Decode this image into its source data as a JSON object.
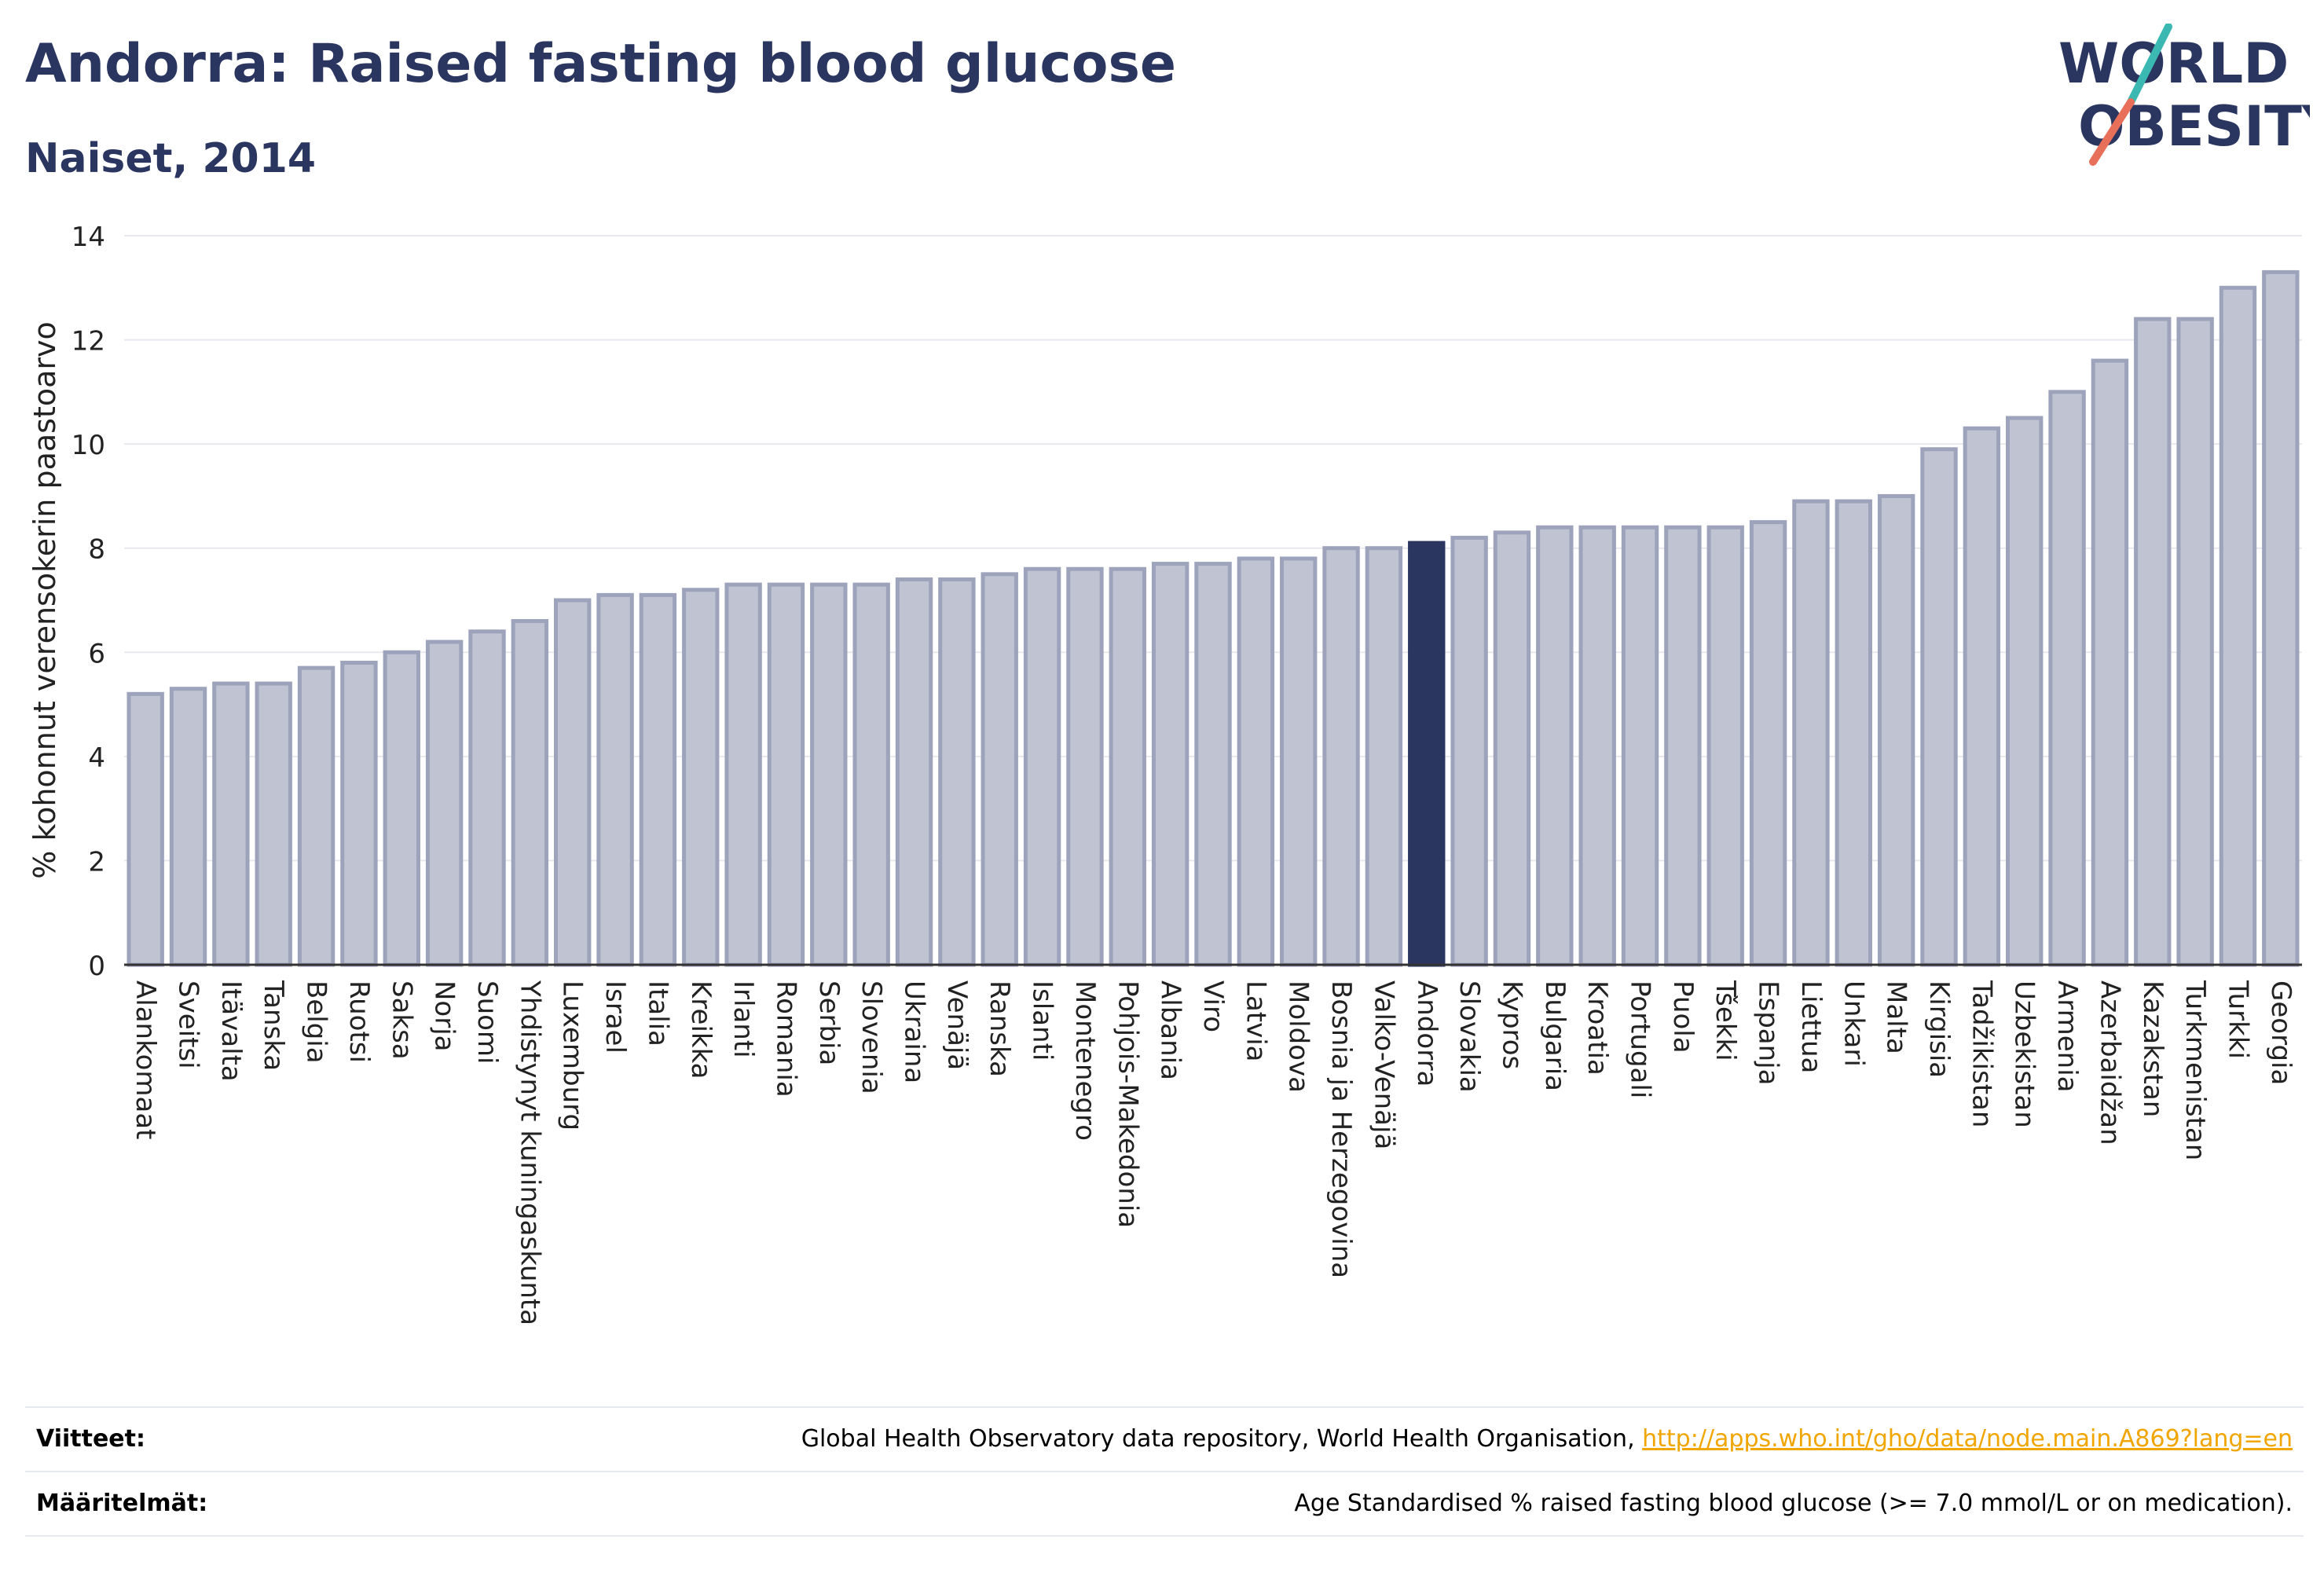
{
  "header": {
    "title": "Andorra: Raised fasting blood glucose",
    "subtitle": "Naiset, 2014"
  },
  "logo": {
    "line1": "WORLD",
    "line2": "OBESITY"
  },
  "colors": {
    "highlight": "#2a3560",
    "bar": "#bfc3d2",
    "bar_border": "#9da3bb",
    "text": "#2a3560",
    "grid": "#e8e8ee",
    "link": "#f0a500"
  },
  "chart_data": {
    "type": "bar",
    "ylabel": "% kohonnut verensokerin paastoarvo",
    "ylim": [
      0,
      14
    ],
    "yticks": [
      0,
      2,
      4,
      6,
      8,
      10,
      12,
      14
    ],
    "highlight": "Andorra",
    "categories": [
      "Alankomaat",
      "Sveitsi",
      "Itävalta",
      "Tanska",
      "Belgia",
      "Ruotsi",
      "Saksa",
      "Norja",
      "Suomi",
      "Yhdistynyt kuningaskunta",
      "Luxemburg",
      "Israel",
      "Italia",
      "Kreikka",
      "Irlanti",
      "Romania",
      "Serbia",
      "Slovenia",
      "Ukraina",
      "Venäjä",
      "Ranska",
      "Islanti",
      "Montenegro",
      "Pohjois-Makedonia",
      "Albania",
      "Viro",
      "Latvia",
      "Moldova",
      "Bosnia ja Herzegovina",
      "Valko-Venäjä",
      "Andorra",
      "Slovakia",
      "Kypros",
      "Bulgaria",
      "Kroatia",
      "Portugali",
      "Puola",
      "Tšekki",
      "Espanja",
      "Liettua",
      "Unkari",
      "Malta",
      "Kirgisia",
      "Tadžikistan",
      "Uzbekistan",
      "Armenia",
      "Azerbaidžan",
      "Kazakstan",
      "Turkmenistan",
      "Turkki",
      "Georgia"
    ],
    "values": [
      5.2,
      5.3,
      5.4,
      5.4,
      5.7,
      5.8,
      6.0,
      6.2,
      6.4,
      6.6,
      7.0,
      7.1,
      7.1,
      7.2,
      7.3,
      7.3,
      7.3,
      7.3,
      7.4,
      7.4,
      7.5,
      7.6,
      7.6,
      7.6,
      7.7,
      7.7,
      7.8,
      7.8,
      8.0,
      8.0,
      8.1,
      8.2,
      8.3,
      8.4,
      8.4,
      8.4,
      8.4,
      8.4,
      8.5,
      8.9,
      8.9,
      9.0,
      9.9,
      10.3,
      10.5,
      11.0,
      11.6,
      12.4,
      12.4,
      13.0,
      13.3
    ]
  },
  "footer": {
    "sources_label": "Viitteet:",
    "sources_text": "Global Health Observatory data repository, World Health Organisation, ",
    "sources_link": "http://apps.who.int/gho/data/node.main.A869?lang=en",
    "definitions_label": "Määritelmät:",
    "definitions_text": "Age Standardised % raised fasting blood glucose (>= 7.0 mmol/L or on medication)."
  }
}
